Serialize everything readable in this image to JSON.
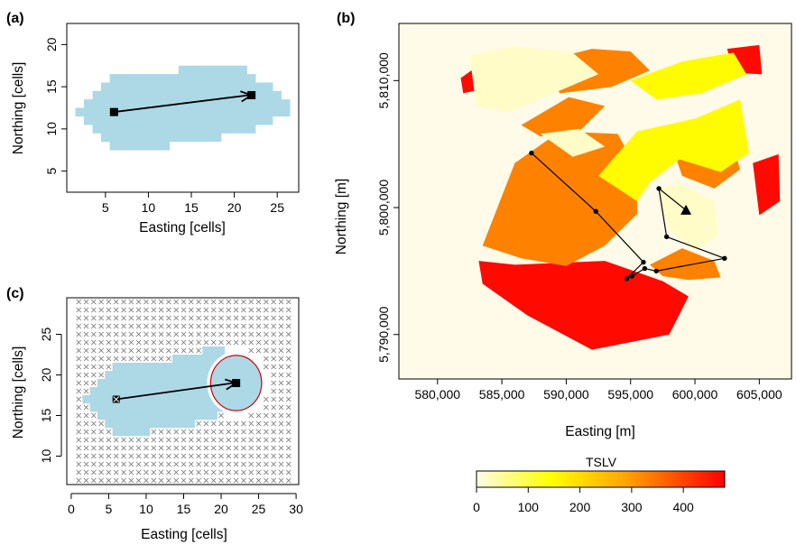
{
  "colors": {
    "footprint": "#add8e6",
    "map_background": "#fffbe8",
    "path_line": "#000000",
    "circle": "#cc0000"
  },
  "chart_data": [
    {
      "panel": "(a)",
      "type": "map",
      "xlabel": "Easting [cells]",
      "ylabel": "Northing [cells]",
      "xlim": [
        0.5,
        27.5
      ],
      "ylim": [
        2.5,
        22.5
      ],
      "x_ticks": [
        5,
        10,
        15,
        20,
        25
      ],
      "y_ticks": [
        5,
        10,
        15,
        20
      ],
      "x_tick_labels": [
        "5",
        "10",
        "15",
        "20",
        "25"
      ],
      "y_tick_labels": [
        "5",
        "10",
        "15",
        "20"
      ],
      "footprint_rows": [
        {
          "y": 8,
          "x0": 6,
          "x1": 12
        },
        {
          "y": 9,
          "x0": 5,
          "x1": 18
        },
        {
          "y": 10,
          "x0": 4,
          "x1": 22
        },
        {
          "y": 11,
          "x0": 3,
          "x1": 24
        },
        {
          "y": 12,
          "x0": 2,
          "x1": 26
        },
        {
          "y": 13,
          "x0": 3,
          "x1": 26
        },
        {
          "y": 14,
          "x0": 4,
          "x1": 25
        },
        {
          "y": 15,
          "x0": 5,
          "x1": 24
        },
        {
          "y": 16,
          "x0": 6,
          "x1": 22
        },
        {
          "y": 17,
          "x0": 14,
          "x1": 21
        }
      ],
      "start": {
        "x": 6,
        "y": 12
      },
      "end": {
        "x": 22,
        "y": 14
      },
      "grid": false
    },
    {
      "panel": "(b)",
      "type": "heatmap",
      "xlabel": "Easting [m]",
      "ylabel": "Northing [m]",
      "xlim": [
        577000,
        607500
      ],
      "ylim": [
        5786500,
        5814500
      ],
      "x_ticks": [
        580000,
        585000,
        590000,
        595000,
        600000,
        605000
      ],
      "x_tick_labels": [
        "580,000",
        "585,000",
        "590,000",
        "595,000",
        "600,000",
        "605,000"
      ],
      "y_ticks": [
        5790000,
        5800000,
        5810000
      ],
      "y_tick_labels": [
        "5,790,000",
        "5,800,000",
        "5,810,000"
      ],
      "legend_title": "TSLV",
      "legend_range": [
        0,
        480
      ],
      "legend_ticks": [
        0,
        100,
        200,
        300,
        400
      ],
      "legend_tick_labels": [
        "0",
        "100",
        "200",
        "300",
        "400"
      ],
      "legend_placement": "bottom",
      "color_scale": [
        "#fffbe8",
        "#ffff00",
        "#ffa500",
        "#ff0000"
      ],
      "path": [
        {
          "x": 587300,
          "y": 5804300
        },
        {
          "x": 592300,
          "y": 5799700
        },
        {
          "x": 596000,
          "y": 5795700
        },
        {
          "x": 594700,
          "y": 5794400
        },
        {
          "x": 595100,
          "y": 5794600
        },
        {
          "x": 596100,
          "y": 5795200
        },
        {
          "x": 597000,
          "y": 5795000
        },
        {
          "x": 602300,
          "y": 5796000
        },
        {
          "x": 597800,
          "y": 5797700
        },
        {
          "x": 597200,
          "y": 5801500
        },
        {
          "x": 599300,
          "y": 5799800
        }
      ],
      "regions": [
        {
          "value": 470,
          "pts": [
            [
              583500,
              5794000
            ],
            [
              587000,
              5791500
            ],
            [
              592000,
              5788800
            ],
            [
              598000,
              5790000
            ],
            [
              599500,
              5793000
            ],
            [
              597500,
              5794200
            ],
            [
              593000,
              5795800
            ],
            [
              586000,
              5795500
            ],
            [
              583200,
              5795800
            ]
          ]
        },
        {
          "value": 470,
          "pts": [
            [
              582000,
              5809000
            ],
            [
              585500,
              5809800
            ],
            [
              586500,
              5811000
            ],
            [
              583200,
              5811200
            ],
            [
              581800,
              5810200
            ]
          ]
        },
        {
          "value": 470,
          "pts": [
            [
              602500,
              5812500
            ],
            [
              605000,
              5812800
            ],
            [
              605200,
              5810500
            ],
            [
              603000,
              5810600
            ]
          ]
        },
        {
          "value": 470,
          "pts": [
            [
              604500,
              5803500
            ],
            [
              606500,
              5804200
            ],
            [
              606600,
              5800500
            ],
            [
              605000,
              5799400
            ]
          ]
        },
        {
          "value": 470,
          "pts": [
            [
              588800,
              5792000
            ],
            [
              590800,
              5792300
            ],
            [
              590800,
              5790500
            ],
            [
              588800,
              5790800
            ]
          ]
        },
        {
          "value": 330,
          "pts": [
            [
              583500,
              5797000
            ],
            [
              586000,
              5803500
            ],
            [
              589500,
              5806000
            ],
            [
              594000,
              5805800
            ],
            [
              595500,
              5803000
            ],
            [
              595500,
              5799500
            ],
            [
              593000,
              5797000
            ],
            [
              590000,
              5795400
            ],
            [
              586500,
              5796000
            ]
          ]
        },
        {
          "value": 330,
          "pts": [
            [
              588000,
              5811500
            ],
            [
              592000,
              5812500
            ],
            [
              595000,
              5812300
            ],
            [
              596500,
              5810800
            ],
            [
              593500,
              5809500
            ],
            [
              589500,
              5809000
            ]
          ]
        },
        {
          "value": 330,
          "pts": [
            [
              586500,
              5806500
            ],
            [
              590200,
              5808700
            ],
            [
              593000,
              5808000
            ],
            [
              591000,
              5806000
            ],
            [
              588000,
              5805600
            ]
          ]
        },
        {
          "value": 330,
          "pts": [
            [
              598000,
              5805500
            ],
            [
              600000,
              5806800
            ],
            [
              602500,
              5806500
            ],
            [
              603500,
              5803000
            ],
            [
              601500,
              5801500
            ],
            [
              599000,
              5802500
            ]
          ]
        },
        {
          "value": 330,
          "pts": [
            [
              596500,
              5795500
            ],
            [
              599000,
              5796800
            ],
            [
              601500,
              5795800
            ],
            [
              602000,
              5794500
            ],
            [
              599500,
              5794300
            ],
            [
              597500,
              5794600
            ]
          ]
        },
        {
          "value": 150,
          "pts": [
            [
              592500,
              5802500
            ],
            [
              595500,
              5806000
            ],
            [
              600000,
              5807000
            ],
            [
              603500,
              5808500
            ],
            [
              604200,
              5804300
            ],
            [
              602000,
              5802800
            ],
            [
              598800,
              5803800
            ],
            [
              596500,
              5802000
            ],
            [
              595500,
              5800500
            ]
          ]
        },
        {
          "value": 150,
          "pts": [
            [
              595000,
              5810000
            ],
            [
              599000,
              5811500
            ],
            [
              603000,
              5812200
            ],
            [
              604000,
              5810500
            ],
            [
              600500,
              5809000
            ],
            [
              597000,
              5808500
            ]
          ]
        },
        {
          "value": 20,
          "pts": [
            [
              582500,
              5812000
            ],
            [
              586000,
              5812700
            ],
            [
              590500,
              5812200
            ],
            [
              592500,
              5810500
            ],
            [
              589000,
              5809000
            ],
            [
              585500,
              5807500
            ],
            [
              583000,
              5808000
            ]
          ]
        },
        {
          "value": 20,
          "pts": [
            [
              588000,
              5805800
            ],
            [
              591000,
              5806200
            ],
            [
              593000,
              5804800
            ],
            [
              590500,
              5804000
            ]
          ]
        },
        {
          "value": 20,
          "pts": [
            [
              597200,
              5801500
            ],
            [
              598800,
              5801900
            ],
            [
              601500,
              5800500
            ],
            [
              601800,
              5797800
            ],
            [
              600000,
              5796600
            ],
            [
              598000,
              5798200
            ],
            [
              597400,
              5800000
            ]
          ]
        }
      ],
      "grid": false
    },
    {
      "panel": "(c)",
      "type": "map",
      "xlabel": "Easting [cells]",
      "ylabel": "Northing [cells]",
      "xlim": [
        0,
        30
      ],
      "ylim": [
        6.5,
        29.5
      ],
      "x_ticks": [
        0,
        5,
        10,
        15,
        20,
        25,
        30
      ],
      "x_tick_labels": [
        "0",
        "5",
        "10",
        "15",
        "20",
        "25",
        "30"
      ],
      "y_ticks": [
        10,
        15,
        20,
        25
      ],
      "y_tick_labels": [
        "10",
        "15",
        "20",
        "25"
      ],
      "grid_cells": {
        "x_from": 1,
        "x_to": 29,
        "y_from": 7,
        "y_to": 29
      },
      "footprint_rows": [
        {
          "y": 13,
          "x0": 6,
          "x1": 10
        },
        {
          "y": 14,
          "x0": 5,
          "x1": 16
        },
        {
          "y": 15,
          "x0": 4,
          "x1": 19
        },
        {
          "y": 16,
          "x0": 3,
          "x1": 21
        },
        {
          "y": 17,
          "x0": 2,
          "x1": 23
        },
        {
          "y": 18,
          "x0": 3,
          "x1": 24
        },
        {
          "y": 19,
          "x0": 4,
          "x1": 25
        },
        {
          "y": 20,
          "x0": 5,
          "x1": 25
        },
        {
          "y": 21,
          "x0": 6,
          "x1": 23
        },
        {
          "y": 22,
          "x0": 14,
          "x1": 21
        },
        {
          "y": 23,
          "x0": 18,
          "x1": 20
        }
      ],
      "circle": {
        "x": 22,
        "y": 19,
        "r": 3.4
      },
      "start": {
        "x": 6,
        "y": 17
      },
      "end": {
        "x": 22,
        "y": 19
      },
      "grid": false
    }
  ]
}
